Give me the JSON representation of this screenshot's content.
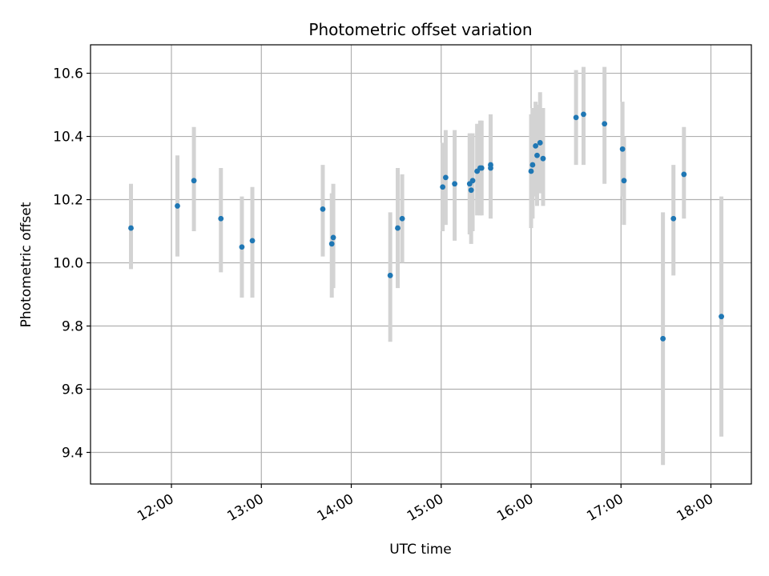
{
  "chart_data": {
    "type": "scatter",
    "title": "Photometric offset variation",
    "xlabel": "UTC time",
    "ylabel": "Photometric offset",
    "x_ticks": [
      "12:00",
      "13:00",
      "14:00",
      "15:00",
      "16:00",
      "17:00",
      "18:00"
    ],
    "y_ticks": [
      "9.4",
      "9.6",
      "9.8",
      "10.0",
      "10.2",
      "10.4",
      "10.6"
    ],
    "xlim": [
      "11:06",
      "18:27"
    ],
    "ylim": [
      9.3,
      10.69
    ],
    "grid": true,
    "marker_color": "#1f77b4",
    "errorbar_color": "#d3d3d3",
    "points": [
      {
        "x": "11:33",
        "y": 10.11,
        "lo": 9.98,
        "hi": 10.25
      },
      {
        "x": "12:04",
        "y": 10.18,
        "lo": 10.02,
        "hi": 10.34
      },
      {
        "x": "12:15",
        "y": 10.26,
        "lo": 10.1,
        "hi": 10.43
      },
      {
        "x": "12:33",
        "y": 10.14,
        "lo": 9.97,
        "hi": 10.3
      },
      {
        "x": "12:47",
        "y": 10.05,
        "lo": 9.89,
        "hi": 10.21
      },
      {
        "x": "12:54",
        "y": 10.07,
        "lo": 9.89,
        "hi": 10.24
      },
      {
        "x": "13:41",
        "y": 10.17,
        "lo": 10.02,
        "hi": 10.31
      },
      {
        "x": "13:47",
        "y": 10.06,
        "lo": 9.89,
        "hi": 10.22
      },
      {
        "x": "13:48",
        "y": 10.08,
        "lo": 9.92,
        "hi": 10.25
      },
      {
        "x": "14:26",
        "y": 9.96,
        "lo": 9.75,
        "hi": 10.16
      },
      {
        "x": "14:31",
        "y": 10.11,
        "lo": 9.92,
        "hi": 10.3
      },
      {
        "x": "14:34",
        "y": 10.14,
        "lo": 10.0,
        "hi": 10.28
      },
      {
        "x": "15:01",
        "y": 10.24,
        "lo": 10.1,
        "hi": 10.38
      },
      {
        "x": "15:03",
        "y": 10.27,
        "lo": 10.12,
        "hi": 10.42
      },
      {
        "x": "15:09",
        "y": 10.25,
        "lo": 10.07,
        "hi": 10.42
      },
      {
        "x": "15:19",
        "y": 10.25,
        "lo": 10.09,
        "hi": 10.41
      },
      {
        "x": "15:20",
        "y": 10.23,
        "lo": 10.06,
        "hi": 10.4
      },
      {
        "x": "15:21",
        "y": 10.26,
        "lo": 10.1,
        "hi": 10.41
      },
      {
        "x": "15:24",
        "y": 10.29,
        "lo": 10.15,
        "hi": 10.44
      },
      {
        "x": "15:26",
        "y": 10.3,
        "lo": 10.15,
        "hi": 10.45
      },
      {
        "x": "15:27",
        "y": 10.3,
        "lo": 10.15,
        "hi": 10.45
      },
      {
        "x": "15:33",
        "y": 10.31,
        "lo": 10.15,
        "hi": 10.47
      },
      {
        "x": "15:33",
        "y": 10.3,
        "lo": 10.14,
        "hi": 10.46
      },
      {
        "x": "16:00",
        "y": 10.29,
        "lo": 10.11,
        "hi": 10.47
      },
      {
        "x": "16:01",
        "y": 10.31,
        "lo": 10.14,
        "hi": 10.49
      },
      {
        "x": "16:03",
        "y": 10.37,
        "lo": 10.21,
        "hi": 10.51
      },
      {
        "x": "16:04",
        "y": 10.34,
        "lo": 10.18,
        "hi": 10.5
      },
      {
        "x": "16:06",
        "y": 10.38,
        "lo": 10.22,
        "hi": 10.54
      },
      {
        "x": "16:08",
        "y": 10.33,
        "lo": 10.18,
        "hi": 10.49
      },
      {
        "x": "16:30",
        "y": 10.46,
        "lo": 10.31,
        "hi": 10.61
      },
      {
        "x": "16:35",
        "y": 10.47,
        "lo": 10.31,
        "hi": 10.62
      },
      {
        "x": "16:49",
        "y": 10.44,
        "lo": 10.25,
        "hi": 10.62
      },
      {
        "x": "17:01",
        "y": 10.36,
        "lo": 10.21,
        "hi": 10.51
      },
      {
        "x": "17:02",
        "y": 10.26,
        "lo": 10.12,
        "hi": 10.4
      },
      {
        "x": "17:28",
        "y": 9.76,
        "lo": 9.36,
        "hi": 10.16
      },
      {
        "x": "17:35",
        "y": 10.14,
        "lo": 9.96,
        "hi": 10.31
      },
      {
        "x": "17:42",
        "y": 10.28,
        "lo": 10.14,
        "hi": 10.43
      },
      {
        "x": "18:07",
        "y": 9.83,
        "lo": 9.45,
        "hi": 10.21
      }
    ]
  }
}
